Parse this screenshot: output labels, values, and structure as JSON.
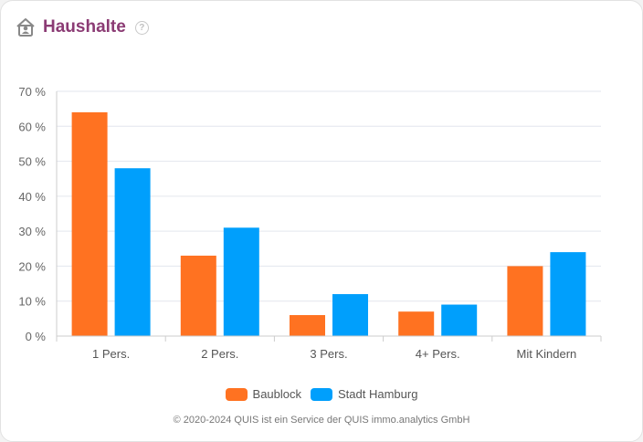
{
  "header": {
    "title": "Haushalte",
    "help_glyph": "?",
    "icon": "home-person-icon"
  },
  "chart_data": {
    "type": "bar",
    "title": "Haushalte",
    "xlabel": "",
    "ylabel": "",
    "ylim": [
      0,
      70
    ],
    "yticks": [
      0,
      10,
      20,
      30,
      40,
      50,
      60,
      70
    ],
    "ytick_labels": [
      "0 %",
      "10 %",
      "20 %",
      "30 %",
      "40 %",
      "50 %",
      "60 %",
      "70 %"
    ],
    "categories": [
      "1 Pers.",
      "2 Pers.",
      "3 Pers.",
      "4+ Pers.",
      "Mit Kindern"
    ],
    "series": [
      {
        "name": "Baublock",
        "color": "#ff7221",
        "values": [
          64,
          23,
          6,
          7,
          20
        ]
      },
      {
        "name": "Stadt Hamburg",
        "color": "#009ffc",
        "values": [
          48,
          31,
          12,
          9,
          24
        ]
      }
    ],
    "grid": true,
    "legend": "bottom-center"
  },
  "footer": "© 2020-2024 QUIS ist ein Service der QUIS immo.analytics GmbH"
}
